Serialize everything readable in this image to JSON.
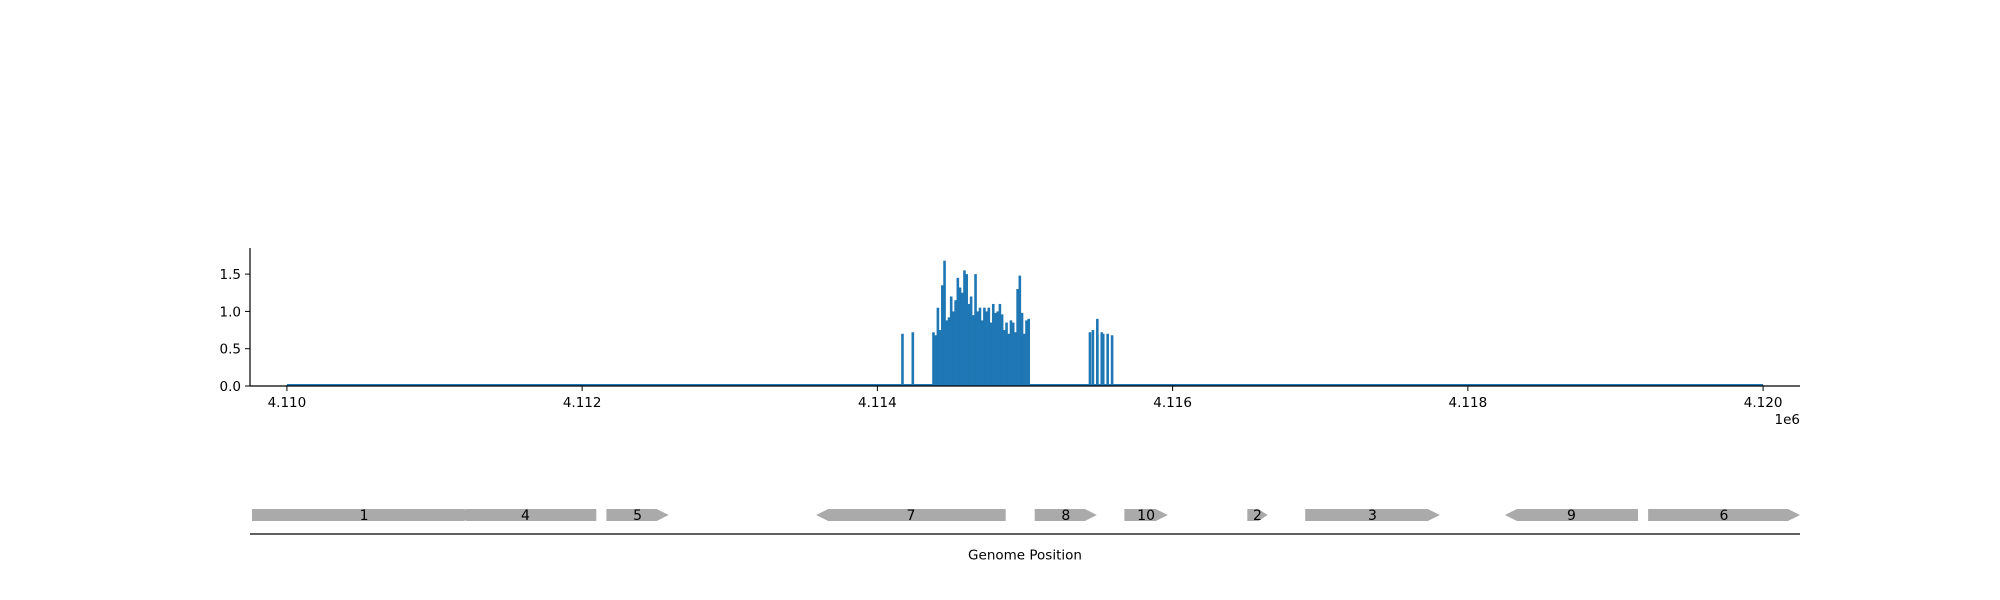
{
  "chart_data": [
    {
      "type": "bar",
      "title": "",
      "xlabel": "",
      "ylabel": "",
      "x_offset_label": "1e6",
      "xlim": [
        4109750,
        4120250
      ],
      "ylim": [
        0,
        1.85
      ],
      "x_ticks": [
        4110000,
        4112000,
        4114000,
        4116000,
        4118000,
        4120000
      ],
      "x_tick_labels": [
        "4.110",
        "4.112",
        "4.114",
        "4.116",
        "4.118",
        "4.120"
      ],
      "y_ticks": [
        0.0,
        0.5,
        1.0,
        1.5
      ],
      "y_tick_labels": [
        "0.0",
        "0.5",
        "1.0",
        "1.5"
      ],
      "grid": false,
      "legend": "none",
      "color": "#1f77b4",
      "baseline": [
        4110000,
        4120000
      ],
      "x": [
        4114170,
        4114240,
        4114380,
        4114395,
        4114410,
        4114425,
        4114440,
        4114455,
        4114470,
        4114485,
        4114500,
        4114515,
        4114530,
        4114545,
        4114560,
        4114575,
        4114590,
        4114605,
        4114620,
        4114635,
        4114650,
        4114665,
        4114680,
        4114695,
        4114710,
        4114725,
        4114740,
        4114755,
        4114770,
        4114785,
        4114800,
        4114815,
        4114830,
        4114845,
        4114860,
        4114875,
        4114890,
        4114905,
        4114920,
        4114935,
        4114950,
        4114965,
        4114980,
        4114995,
        4115010,
        4115025,
        4115440,
        4115460,
        4115490,
        4115530,
        4115560,
        4115590
      ],
      "y": [
        0.7,
        0.72,
        0.72,
        0.68,
        1.05,
        0.75,
        1.35,
        1.68,
        0.88,
        0.92,
        1.2,
        1.0,
        1.15,
        1.45,
        1.32,
        1.25,
        1.55,
        1.5,
        1.1,
        1.2,
        0.95,
        1.5,
        1.0,
        1.05,
        0.88,
        1.05,
        1.0,
        1.05,
        0.85,
        1.1,
        0.98,
        1.0,
        1.1,
        0.96,
        0.75,
        0.85,
        0.7,
        0.88,
        0.85,
        0.72,
        1.3,
        1.48,
        0.98,
        0.7,
        0.88,
        0.9,
        0.72,
        0.75,
        0.68,
        0.7,
        0.7,
        0.68
      ],
      "x_extra": [
        4115490,
        4115520
      ],
      "y_extra": [
        0.9,
        0.72
      ]
    },
    {
      "type": "gene-map",
      "xlabel": "Genome Position",
      "color": "#aaaaaa",
      "genes": [
        {
          "label": "1",
          "start": 4109800,
          "end": 4111350,
          "strand": "+"
        },
        {
          "label": "4",
          "start": 4111200,
          "end": 4112180,
          "strand": "-"
        },
        {
          "label": "5",
          "start": 4112250,
          "end": 4112680,
          "strand": "+"
        },
        {
          "label": "7",
          "start": 4113700,
          "end": 4115010,
          "strand": "-"
        },
        {
          "label": "8",
          "start": 4115210,
          "end": 4115640,
          "strand": "+"
        },
        {
          "label": "10",
          "start": 4115830,
          "end": 4116130,
          "strand": "+"
        },
        {
          "label": "2",
          "start": 4116680,
          "end": 4116820,
          "strand": "+"
        },
        {
          "label": "3",
          "start": 4117080,
          "end": 4118010,
          "strand": "+"
        },
        {
          "label": "9",
          "start": 4118460,
          "end": 4119380,
          "strand": "-"
        },
        {
          "label": "6",
          "start": 4119450,
          "end": 4120500,
          "strand": "+"
        }
      ]
    }
  ]
}
